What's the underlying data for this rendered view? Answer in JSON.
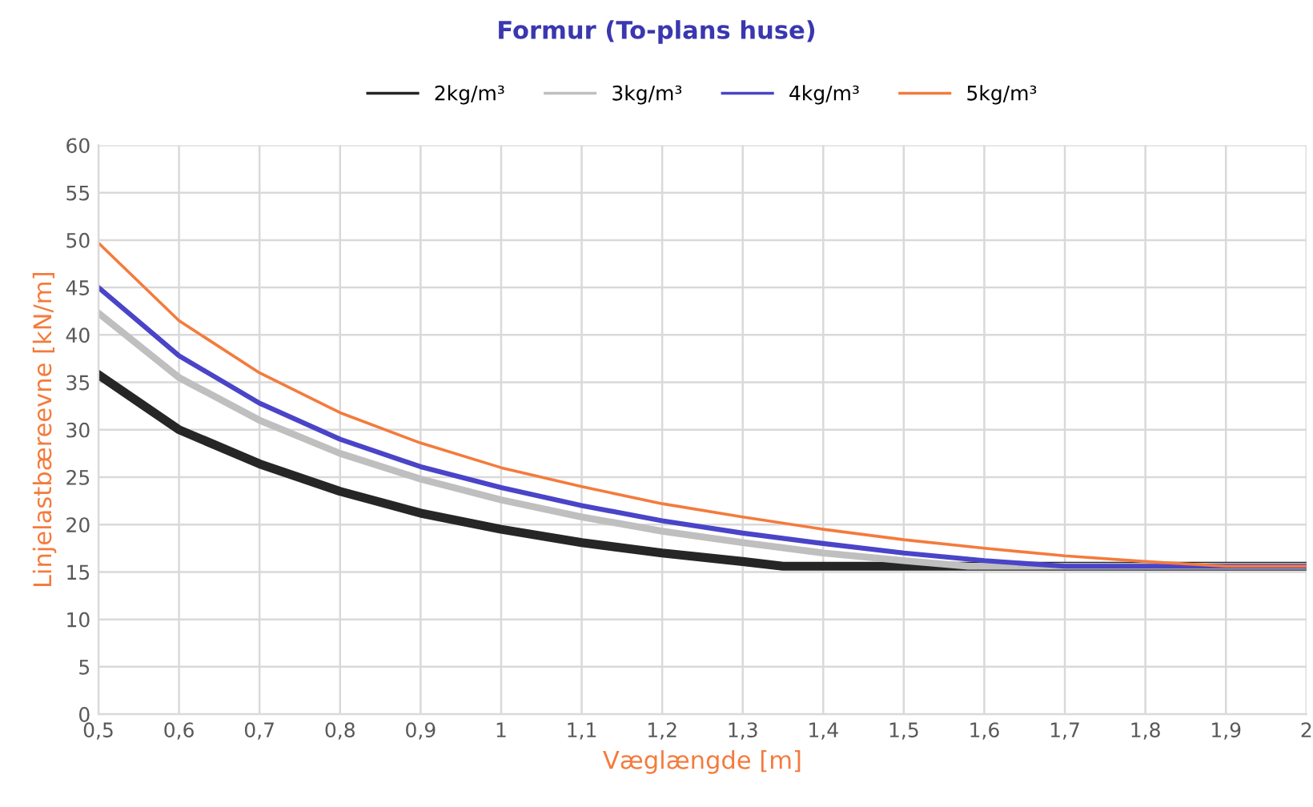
{
  "chart_data": {
    "type": "line",
    "title": "Formur (To-plans huse)",
    "xlabel": "Væglængde [m]",
    "ylabel": "Linjelastbæreevne [kN/m]",
    "series": [
      {
        "name": "2kg/m³",
        "color": "#262626",
        "x": [
          0.5,
          0.6,
          0.7,
          0.8,
          0.9,
          1.0,
          1.1,
          1.2,
          1.3,
          1.35,
          2.0
        ],
        "values": [
          35.8,
          30,
          26.4,
          23.5,
          21.2,
          19.5,
          18.1,
          17,
          16.1,
          15.6,
          15.6
        ]
      },
      {
        "name": "3kg/m³",
        "color": "#bfbfbf",
        "x": [
          0.5,
          0.6,
          0.7,
          0.8,
          0.9,
          1.0,
          1.1,
          1.2,
          1.3,
          1.4,
          1.5,
          1.58,
          2.0
        ],
        "values": [
          42.3,
          35.5,
          31,
          27.5,
          24.8,
          22.6,
          20.8,
          19.3,
          18.1,
          17,
          16.2,
          15.6,
          15.6
        ]
      },
      {
        "name": "4kg/m³",
        "color": "#4a44c8",
        "x": [
          0.5,
          0.6,
          0.7,
          0.8,
          0.9,
          1.0,
          1.1,
          1.2,
          1.3,
          1.4,
          1.5,
          1.6,
          1.7,
          2.0
        ],
        "values": [
          45,
          37.8,
          32.8,
          29,
          26.1,
          23.9,
          22,
          20.4,
          19.1,
          18,
          17,
          16.2,
          15.6,
          15.6
        ]
      },
      {
        "name": "5kg/m³",
        "color": "#f47b3c",
        "x": [
          0.5,
          0.6,
          0.7,
          0.8,
          0.9,
          1.0,
          1.1,
          1.2,
          1.3,
          1.4,
          1.5,
          1.6,
          1.7,
          1.8,
          1.9,
          2.0
        ],
        "values": [
          49.7,
          41.5,
          36,
          31.8,
          28.6,
          26,
          24,
          22.2,
          20.8,
          19.5,
          18.4,
          17.5,
          16.7,
          16.1,
          15.6,
          15.6
        ]
      }
    ],
    "xlim": [
      0.5,
      2.0
    ],
    "ylim": [
      0,
      60
    ],
    "xticks": [
      {
        "value": 0.5,
        "label": "0,5"
      },
      {
        "value": 0.6,
        "label": "0,6"
      },
      {
        "value": 0.7,
        "label": "0,7"
      },
      {
        "value": 0.8,
        "label": "0,8"
      },
      {
        "value": 0.9,
        "label": "0,9"
      },
      1,
      {
        "value": 1.1,
        "label": "1,1"
      },
      {
        "value": 1.2,
        "label": "1,2"
      },
      {
        "value": 1.3,
        "label": "1,3"
      },
      {
        "value": 1.4,
        "label": "1,4"
      },
      {
        "value": 1.5,
        "label": "1,5"
      },
      {
        "value": 1.6,
        "label": "1,6"
      },
      {
        "value": 1.7,
        "label": "1,7"
      },
      {
        "value": 1.8,
        "label": "1,8"
      },
      {
        "value": 1.9,
        "label": "1,9"
      },
      2
    ],
    "yticks": [
      0,
      5,
      10,
      15,
      20,
      25,
      30,
      35,
      40,
      45,
      50,
      55,
      60
    ],
    "grid": true,
    "legend": "top",
    "marker": "none",
    "line_style": "solid"
  }
}
